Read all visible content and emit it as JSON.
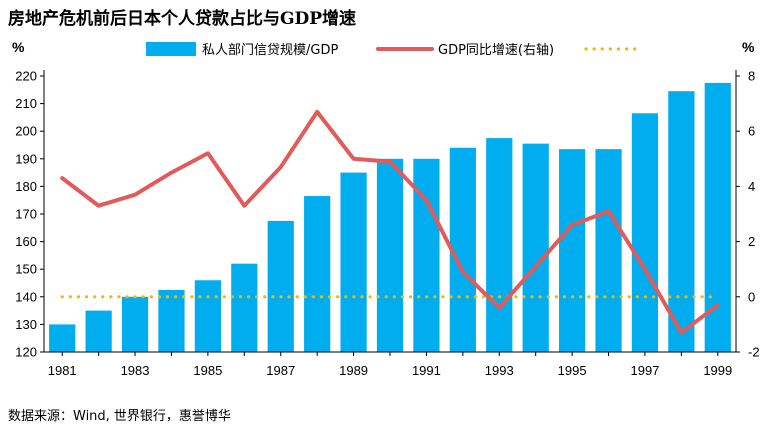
{
  "title": "房地产危机前后日本个人贷款占比与GDP增速",
  "source": "数据来源：Wind, 世界银行，惠誉博华",
  "chart_data": {
    "type": "bar+line",
    "categories": [
      "1981",
      "1982",
      "1983",
      "1984",
      "1985",
      "1986",
      "1987",
      "1988",
      "1989",
      "1990",
      "1991",
      "1992",
      "1993",
      "1994",
      "1995",
      "1996",
      "1997",
      "1998",
      "1999"
    ],
    "x_tick_labels": [
      "1981",
      "1983",
      "1985",
      "1987",
      "1989",
      "1991",
      "1993",
      "1995",
      "1997",
      "1999"
    ],
    "left_axis": {
      "unit": "%",
      "ylim": [
        120,
        220
      ],
      "ticks": [
        120,
        130,
        140,
        150,
        160,
        170,
        180,
        190,
        200,
        210,
        220
      ]
    },
    "right_axis": {
      "unit": "%",
      "ylim": [
        -2,
        8
      ],
      "ticks": [
        -2,
        0,
        2,
        4,
        6,
        8
      ]
    },
    "series": [
      {
        "name": "私人部门信贷规模/GDP",
        "kind": "bar",
        "axis": "left",
        "color": "#00AEEF",
        "values": [
          130,
          135,
          140,
          142.5,
          146,
          152,
          167.5,
          176.5,
          185,
          190,
          190,
          194,
          197.5,
          195.5,
          193.5,
          193.5,
          206.5,
          214.5,
          217.5
        ]
      },
      {
        "name": "GDP同比增速(右轴)",
        "kind": "line",
        "axis": "right",
        "color": "#E35A5A",
        "values": [
          4.3,
          3.3,
          3.7,
          4.5,
          5.2,
          3.3,
          4.7,
          6.7,
          5.0,
          4.9,
          3.5,
          0.9,
          -0.4,
          1.1,
          2.6,
          3.1,
          1.0,
          -1.3,
          -0.3
        ]
      },
      {
        "name": "",
        "kind": "reference-line",
        "axis": "right",
        "color": "#F5B800",
        "values": [
          0,
          0,
          0,
          0,
          0,
          0,
          0,
          0,
          0,
          0,
          0,
          0,
          0,
          0,
          0,
          0,
          0,
          0,
          0
        ]
      }
    ],
    "legend_placement": "top",
    "grid": false
  }
}
